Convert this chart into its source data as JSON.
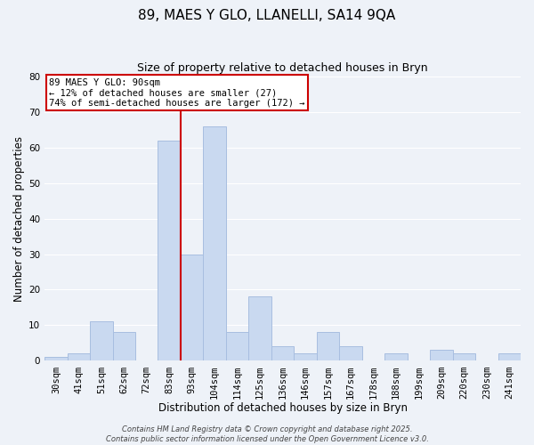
{
  "title1": "89, MAES Y GLO, LLANELLI, SA14 9QA",
  "title2": "Size of property relative to detached houses in Bryn",
  "xlabel": "Distribution of detached houses by size in Bryn",
  "ylabel": "Number of detached properties",
  "bin_labels": [
    "30sqm",
    "41sqm",
    "51sqm",
    "62sqm",
    "72sqm",
    "83sqm",
    "93sqm",
    "104sqm",
    "114sqm",
    "125sqm",
    "136sqm",
    "146sqm",
    "157sqm",
    "167sqm",
    "178sqm",
    "188sqm",
    "199sqm",
    "209sqm",
    "220sqm",
    "230sqm",
    "241sqm"
  ],
  "counts": [
    1,
    2,
    11,
    8,
    0,
    62,
    30,
    66,
    8,
    18,
    4,
    2,
    8,
    4,
    0,
    2,
    0,
    3,
    2,
    0,
    2
  ],
  "bar_color": "#c9d9f0",
  "bar_edge_color": "#a8bee0",
  "vline_color": "#cc0000",
  "annotation_line1": "89 MAES Y GLO: 90sqm",
  "annotation_line2": "← 12% of detached houses are smaller (27)",
  "annotation_line3": "74% of semi-detached houses are larger (172) →",
  "annotation_box_color": "#ffffff",
  "annotation_box_edge": "#cc0000",
  "ylim": [
    0,
    80
  ],
  "yticks": [
    0,
    10,
    20,
    30,
    40,
    50,
    60,
    70,
    80
  ],
  "footer1": "Contains HM Land Registry data © Crown copyright and database right 2025.",
  "footer2": "Contains public sector information licensed under the Open Government Licence v3.0.",
  "bg_color": "#eef2f8",
  "grid_color": "#ffffff",
  "title1_fontsize": 11,
  "title2_fontsize": 9,
  "xlabel_fontsize": 8.5,
  "ylabel_fontsize": 8.5,
  "tick_fontsize": 7.5
}
